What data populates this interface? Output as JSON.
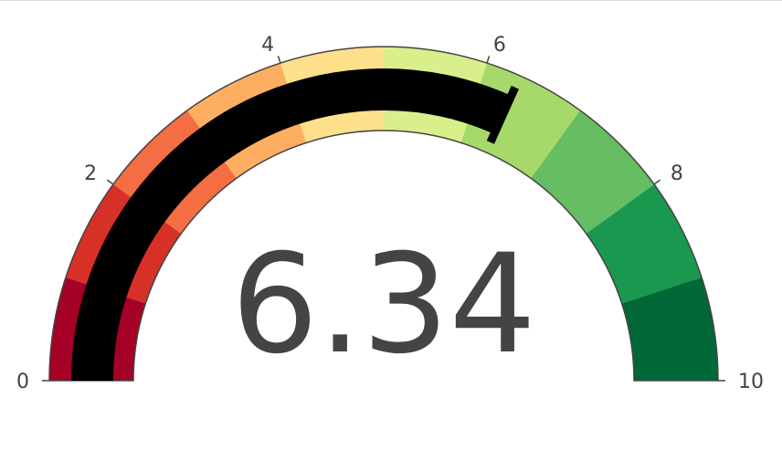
{
  "chart_data": {
    "type": "gauge",
    "value": 6.34,
    "value_text": "6.34",
    "range": [
      0,
      10
    ],
    "ticks": [
      {
        "value": 0,
        "label": "0"
      },
      {
        "value": 2,
        "label": "2"
      },
      {
        "value": 4,
        "label": "4"
      },
      {
        "value": 6,
        "label": "6"
      },
      {
        "value": 8,
        "label": "8"
      },
      {
        "value": 10,
        "label": "10"
      }
    ],
    "steps": [
      {
        "range": [
          0,
          1
        ],
        "color": "#a50026"
      },
      {
        "range": [
          1,
          2
        ],
        "color": "#d73027"
      },
      {
        "range": [
          2,
          3
        ],
        "color": "#f46d43"
      },
      {
        "range": [
          3,
          4
        ],
        "color": "#fdae61"
      },
      {
        "range": [
          4,
          5
        ],
        "color": "#fee08b"
      },
      {
        "range": [
          5,
          6
        ],
        "color": "#d9ef8b"
      },
      {
        "range": [
          6,
          7
        ],
        "color": "#a6d96a"
      },
      {
        "range": [
          7,
          8
        ],
        "color": "#66bd63"
      },
      {
        "range": [
          8,
          9
        ],
        "color": "#1a9850"
      },
      {
        "range": [
          9,
          10
        ],
        "color": "#006837"
      }
    ],
    "bar_color": "#000000",
    "threshold": {
      "value": 6.34,
      "color": "#000000"
    }
  }
}
